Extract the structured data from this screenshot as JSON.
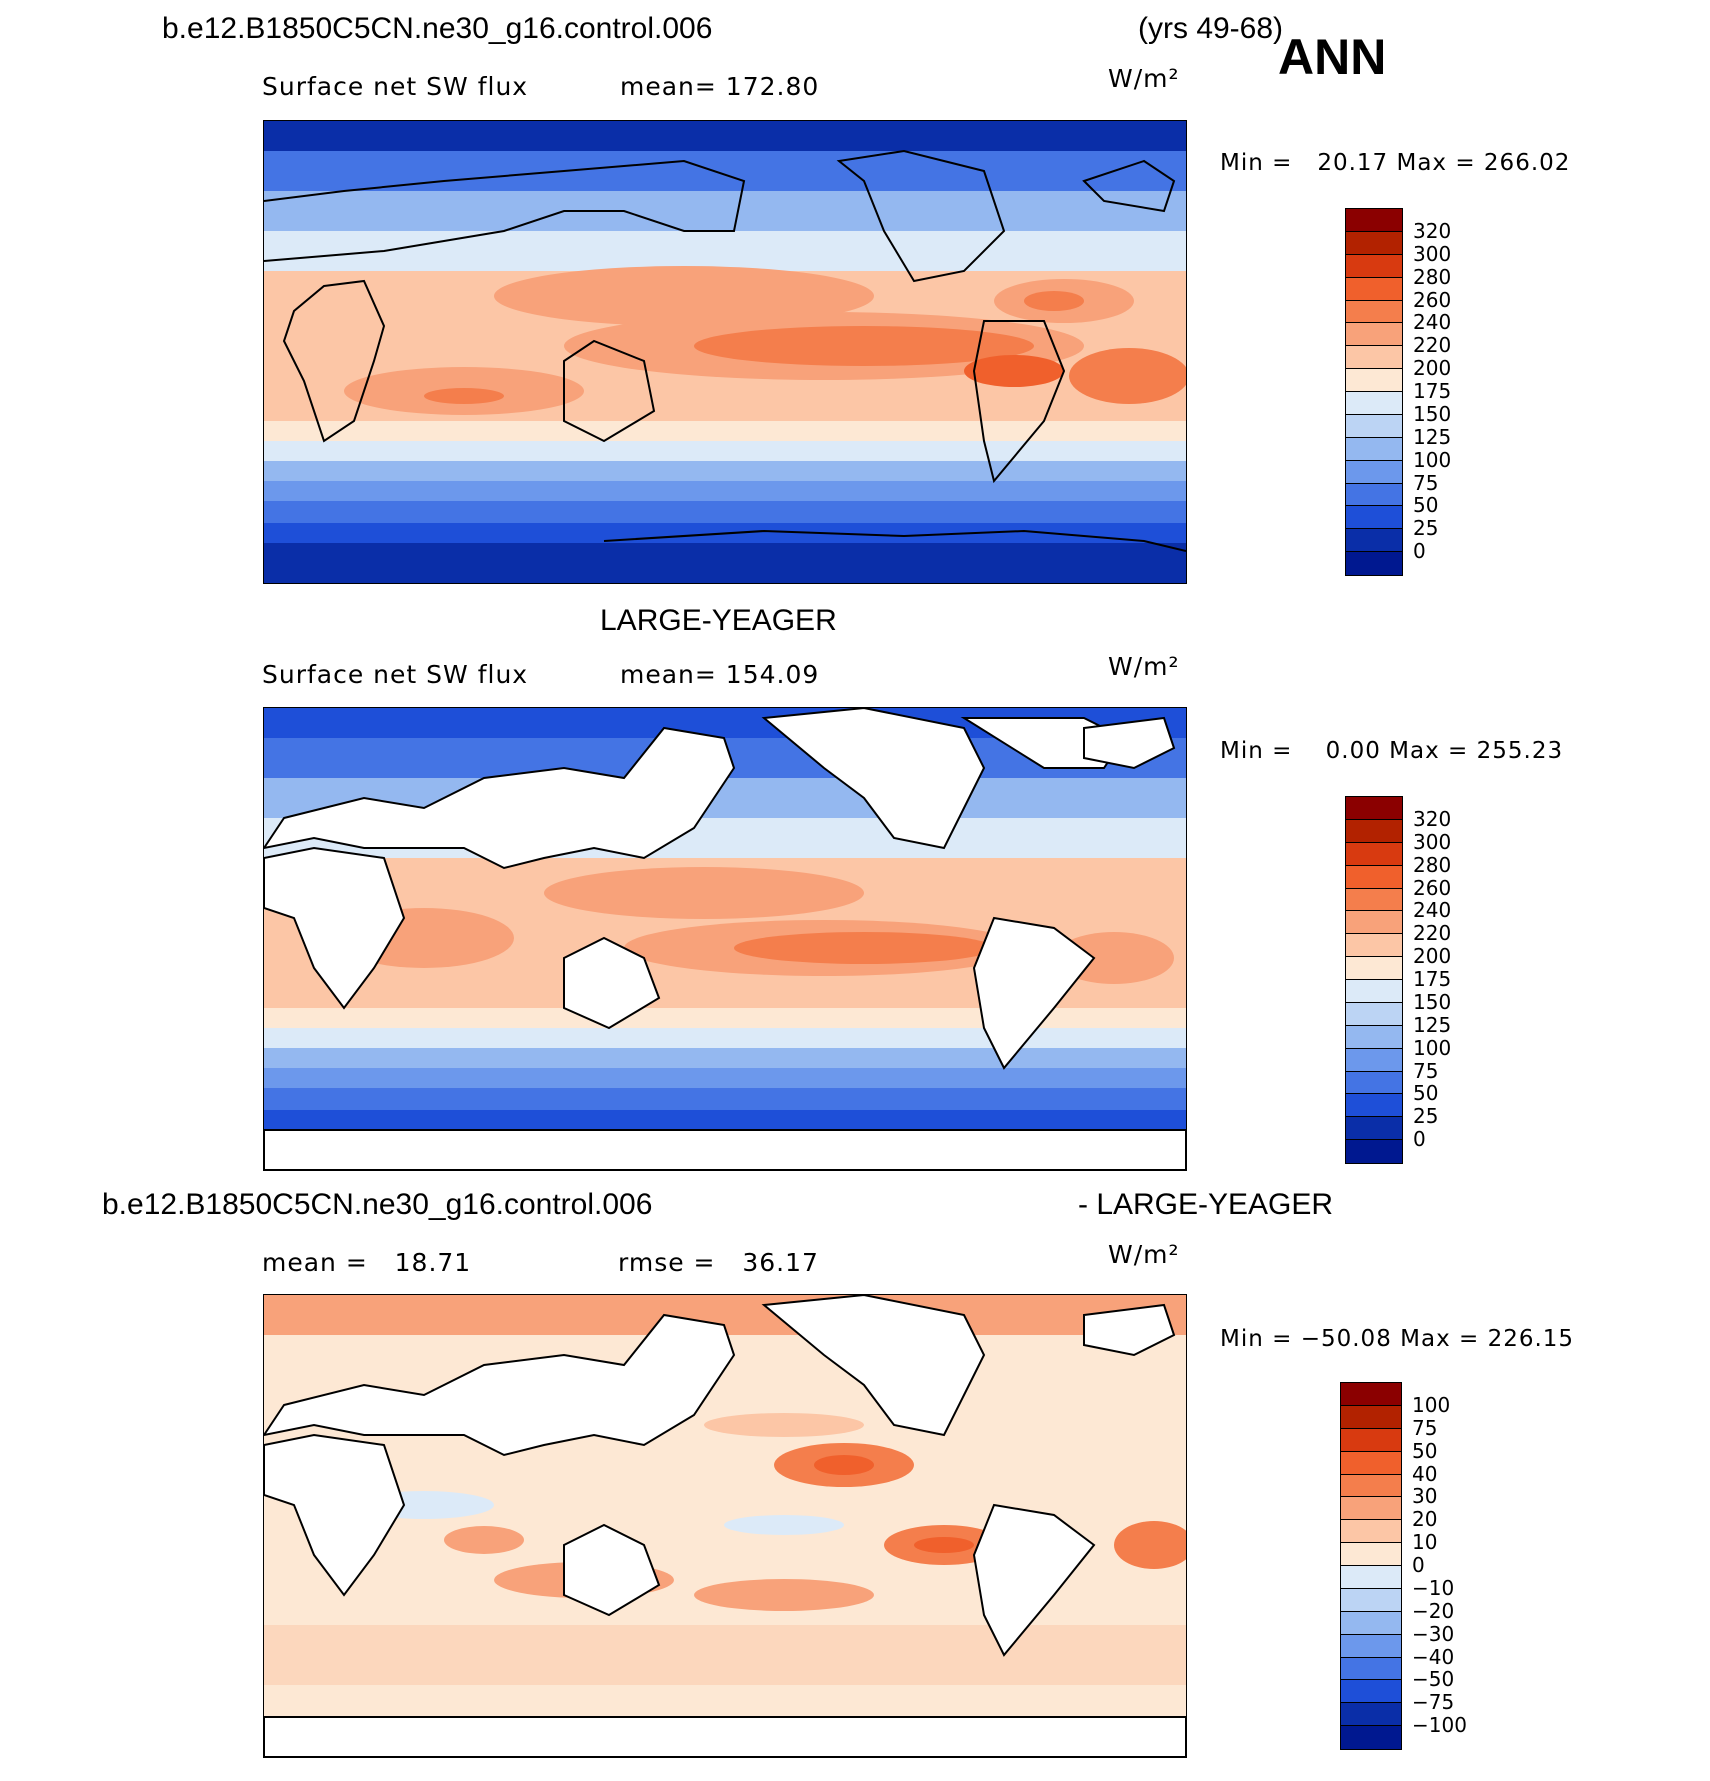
{
  "header": {
    "case_name": "b.e12.B1850C5CN.ne30_g16.control.006",
    "years": "(yrs 49-68)",
    "season": "ANN"
  },
  "panels": [
    {
      "id": "model",
      "title": "",
      "field": "Surface net SW flux",
      "stat_left": "mean= 172.80",
      "stat_right": "",
      "units": "W/m²",
      "minmax": "Min =   20.17 Max = 266.02",
      "colorbar_labels": [
        "320",
        "300",
        "280",
        "260",
        "240",
        "220",
        "200",
        "175",
        "150",
        "125",
        "100",
        "75",
        "50",
        "25",
        "0"
      ],
      "colorbar_colors": [
        "#8b0000",
        "#b22200",
        "#d83a10",
        "#f0602c",
        "#f47e4c",
        "#f8a27a",
        "#fcc6a6",
        "#fde8d4",
        "#dceaf8",
        "#bcd4f4",
        "#94b8f0",
        "#6c98ec",
        "#4474e4",
        "#1e4fd8",
        "#0a2ea8",
        "#001890"
      ],
      "land_masked": false
    },
    {
      "id": "obs",
      "title": "LARGE-YEAGER",
      "field": "Surface net SW flux",
      "stat_left": "mean= 154.09",
      "stat_right": "",
      "units": "W/m²",
      "minmax": "Min =    0.00 Max = 255.23",
      "colorbar_labels": [
        "320",
        "300",
        "280",
        "260",
        "240",
        "220",
        "200",
        "175",
        "150",
        "125",
        "100",
        "75",
        "50",
        "25",
        "0"
      ],
      "colorbar_colors": [
        "#8b0000",
        "#b22200",
        "#d83a10",
        "#f0602c",
        "#f47e4c",
        "#f8a27a",
        "#fcc6a6",
        "#fde8d4",
        "#dceaf8",
        "#bcd4f4",
        "#94b8f0",
        "#6c98ec",
        "#4474e4",
        "#1e4fd8",
        "#0a2ea8",
        "#001890"
      ],
      "land_masked": true
    },
    {
      "id": "diff",
      "title_left": "b.e12.B1850C5CN.ne30_g16.control.006",
      "title_right": "- LARGE-YEAGER",
      "stat_left": "mean =   18.71",
      "stat_right": "rmse =   36.17",
      "units": "W/m²",
      "minmax": "Min = −50.08 Max = 226.15",
      "colorbar_labels": [
        "100",
        "75",
        "50",
        "40",
        "30",
        "20",
        "10",
        "0",
        "−10",
        "−20",
        "−30",
        "−40",
        "−50",
        "−75",
        "−100"
      ],
      "colorbar_colors": [
        "#8b0000",
        "#b22200",
        "#d83a10",
        "#f0602c",
        "#f47e4c",
        "#f8a27a",
        "#fcc6a6",
        "#fde8d4",
        "#dceaf8",
        "#bcd4f4",
        "#94b8f0",
        "#6c98ec",
        "#4474e4",
        "#1e4fd8",
        "#0a2ea8",
        "#001890"
      ],
      "land_masked": true
    }
  ]
}
